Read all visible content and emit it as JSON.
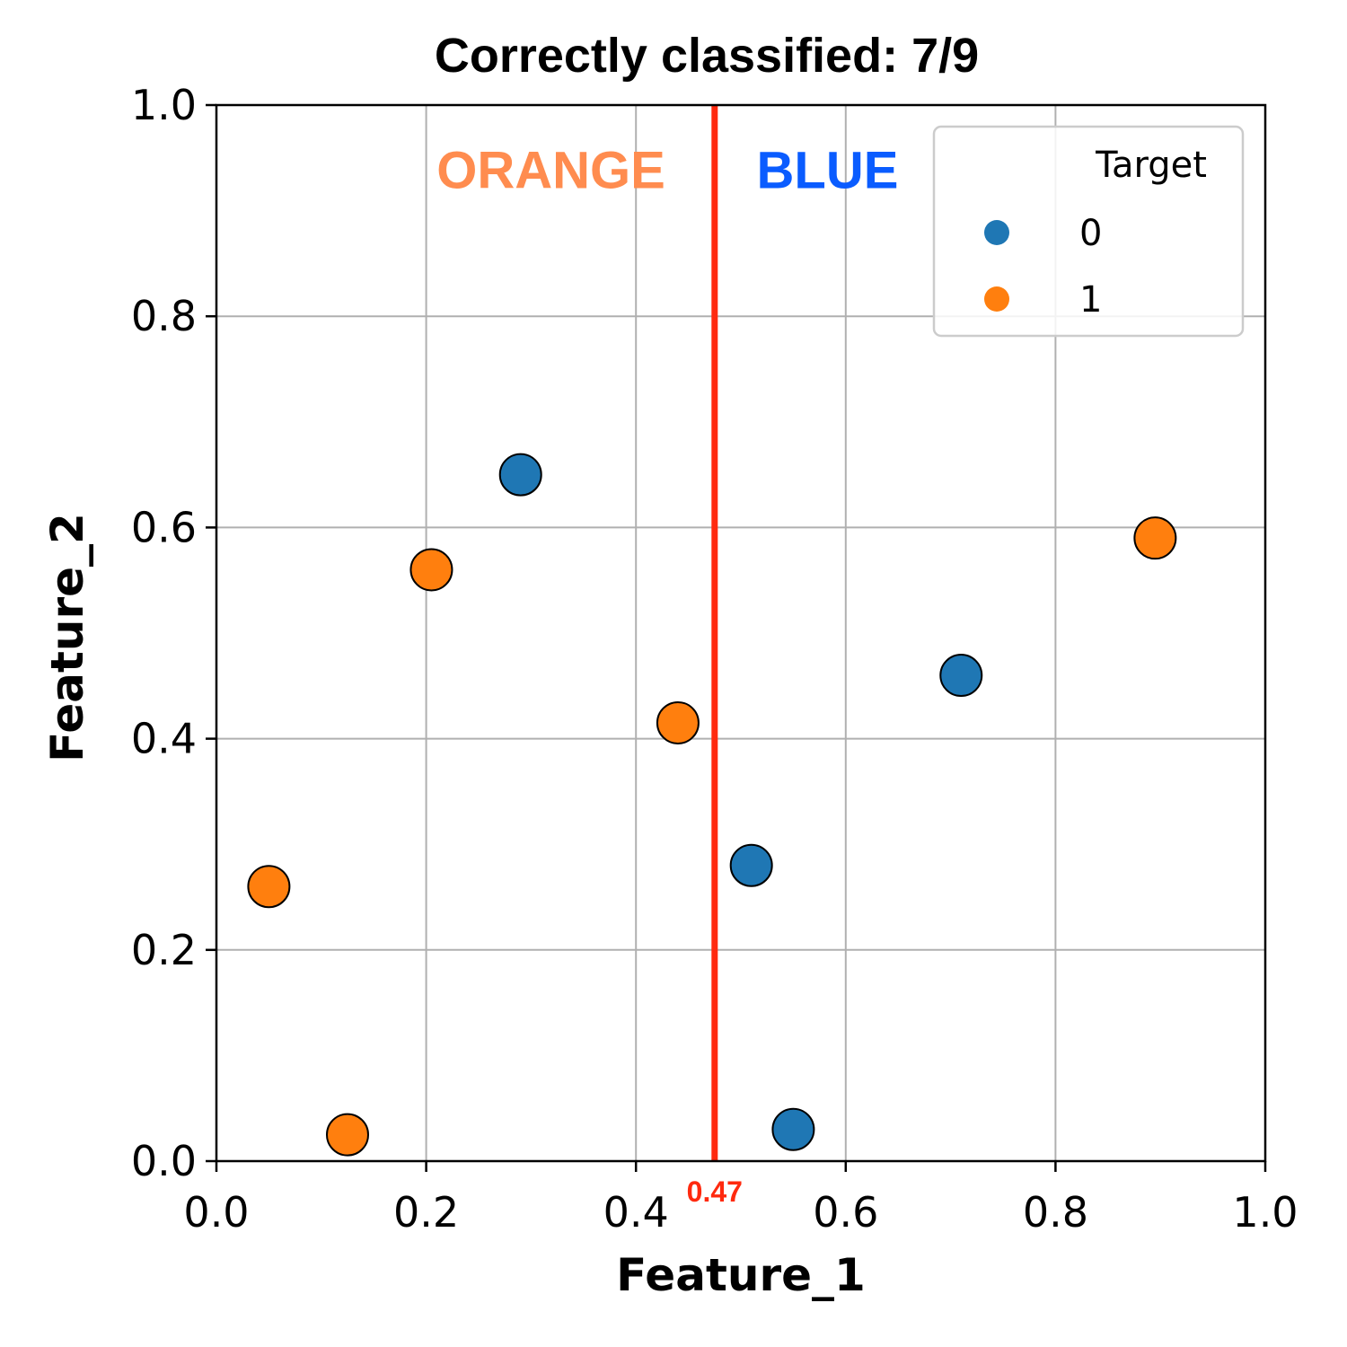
{
  "chart_data": {
    "type": "scatter",
    "title": "Correctly classified: 7/9",
    "xlabel": "Feature_1",
    "ylabel": "Feature_2",
    "xlim": [
      0.0,
      1.0
    ],
    "ylim": [
      0.0,
      1.0
    ],
    "xticks": [
      "0.0",
      "0.2",
      "0.4",
      "0.6",
      "0.8",
      "1.0"
    ],
    "yticks": [
      "0.0",
      "0.2",
      "0.4",
      "0.6",
      "0.8",
      "1.0"
    ],
    "grid": true,
    "threshold": {
      "x": 0.475,
      "label": "0.47",
      "color": "#ff2a0f"
    },
    "regions": [
      {
        "label": "ORANGE",
        "color": "#ff8c4f",
        "x": 0.21,
        "y": 0.94
      },
      {
        "label": "BLUE",
        "color": "#0a5cff",
        "x": 0.515,
        "y": 0.94
      }
    ],
    "legend": {
      "title": "Target",
      "placement": "top-right",
      "entries": [
        {
          "label": "0",
          "color": "#1f77b4"
        },
        {
          "label": "1",
          "color": "#ff7f0e"
        }
      ]
    },
    "series": [
      {
        "name": "0",
        "color": "#1f77b4",
        "points": [
          {
            "x": 0.29,
            "y": 0.65
          },
          {
            "x": 0.51,
            "y": 0.28
          },
          {
            "x": 0.55,
            "y": 0.03
          },
          {
            "x": 0.71,
            "y": 0.46
          }
        ]
      },
      {
        "name": "1",
        "color": "#ff7f0e",
        "points": [
          {
            "x": 0.05,
            "y": 0.26
          },
          {
            "x": 0.125,
            "y": 0.025
          },
          {
            "x": 0.205,
            "y": 0.56
          },
          {
            "x": 0.44,
            "y": 0.415
          },
          {
            "x": 0.895,
            "y": 0.59
          }
        ]
      }
    ]
  }
}
